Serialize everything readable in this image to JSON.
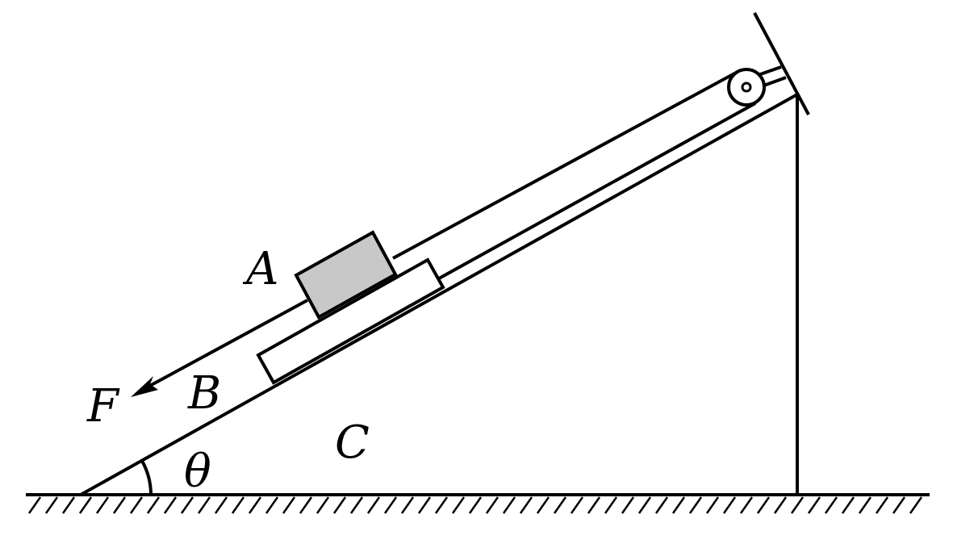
{
  "diagram": {
    "labels": {
      "block_a": "A",
      "board_b": "B",
      "incline_c": "C",
      "force": "F",
      "angle": "θ"
    },
    "colors": {
      "stroke": "#000000",
      "block_a_fill": "#c8c8c8",
      "background": "#ffffff"
    }
  }
}
